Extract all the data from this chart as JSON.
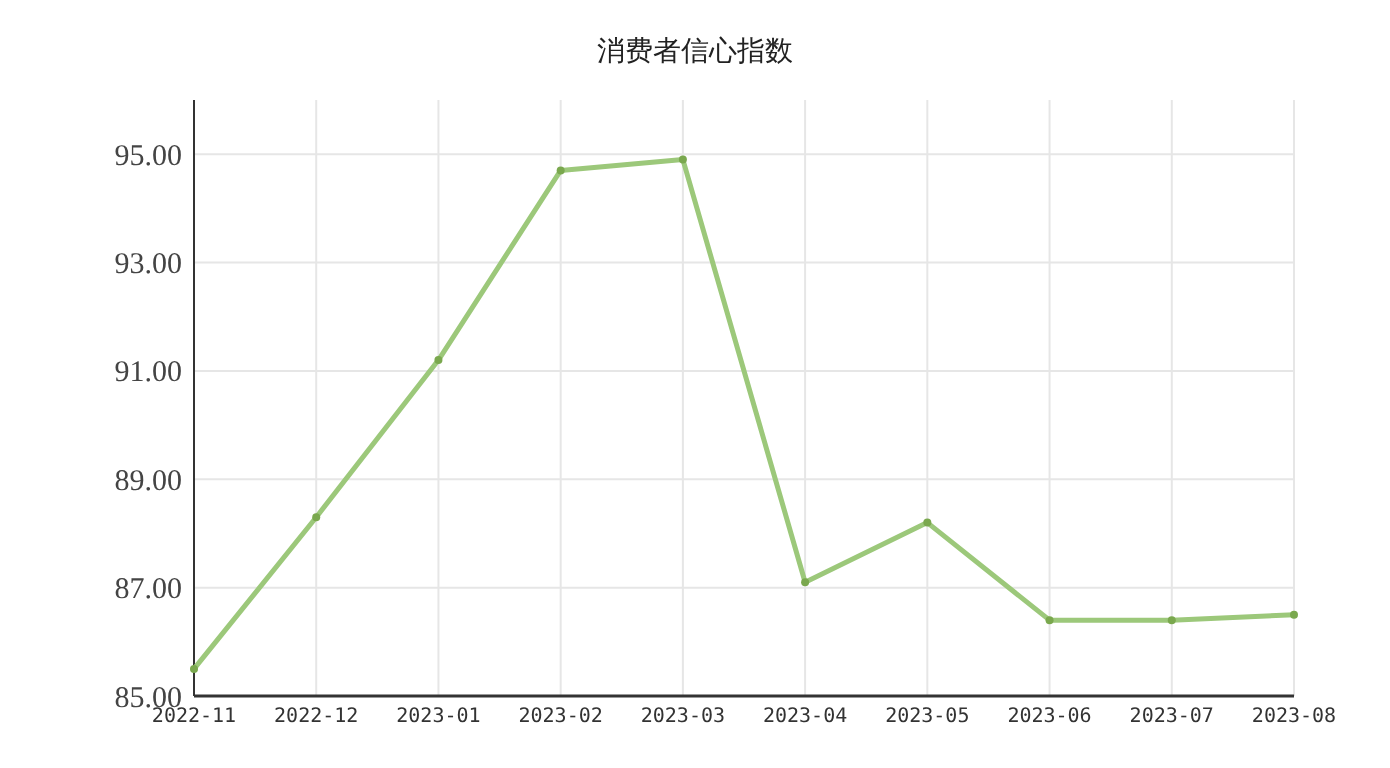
{
  "chart_data": {
    "type": "line",
    "title": "消费者信心指数",
    "categories": [
      "2022-11",
      "2022-12",
      "2023-01",
      "2023-02",
      "2023-03",
      "2023-04",
      "2023-05",
      "2023-06",
      "2023-07",
      "2023-08"
    ],
    "series": [
      {
        "color": "#9cc87a",
        "values": [
          85.5,
          88.3,
          91.2,
          94.7,
          94.9,
          87.1,
          88.2,
          86.4,
          86.4,
          86.5
        ]
      }
    ],
    "ylim": [
      85,
      96
    ],
    "yticks": [
      {
        "value": 85,
        "label": "85.00"
      },
      {
        "value": 87,
        "label": "87.00"
      },
      {
        "value": 89,
        "label": "89.00"
      },
      {
        "value": 91,
        "label": "91.00"
      },
      {
        "value": 93,
        "label": "93.00"
      },
      {
        "value": 95,
        "label": "95.00"
      }
    ],
    "grid": true,
    "marker": "circle",
    "line_style": "solid"
  }
}
